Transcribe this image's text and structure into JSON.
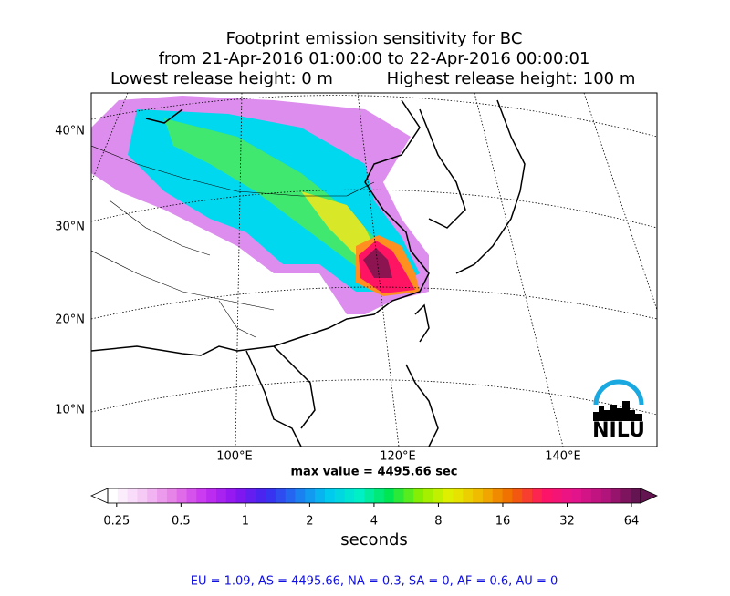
{
  "map": {
    "title": [
      "Footprint emission sensitivity for BC",
      "from 21-Apr-2016 01:00:00 to 22-Apr-2016 00:00:01",
      "Lowest release height: 0 m",
      "Highest release height: 100 m"
    ],
    "lat_labels": [
      "40°N",
      "30°N",
      "20°N",
      "10°N"
    ],
    "lon_labels": [
      "100°E",
      "120°E",
      "140°E"
    ],
    "max_value_text": "max value = 4495.66 sec",
    "logo": "NILU",
    "footer": "EU = 1.09,  AS = 4495.66,  NA = 0.3,  SA = 0,  AF = 0.6,  AU = 0"
  },
  "colorbar": {
    "label": "seconds",
    "log_scale": true,
    "lim": [
      0.227,
      70.6
    ],
    "ticks": [
      0.25,
      0.5,
      1,
      2,
      4,
      8,
      16,
      32,
      64
    ],
    "colors": [
      "#ffffff",
      "#f5c8f5",
      "#e67ee6",
      "#c832f0",
      "#8c14f0",
      "#3c28f0",
      "#1e78f0",
      "#00c8f0",
      "#00f0c8",
      "#00e650",
      "#8cf000",
      "#e6f000",
      "#f0b400",
      "#f06400",
      "#ff1464",
      "#e6148c",
      "#b4147c",
      "#641450"
    ]
  }
}
